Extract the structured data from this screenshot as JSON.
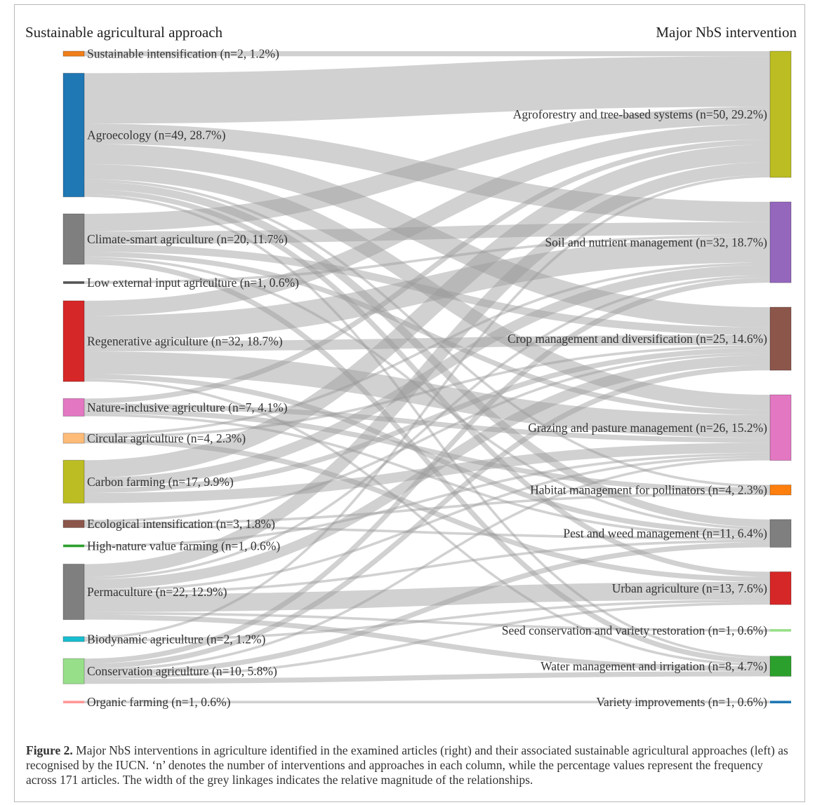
{
  "diagram": {
    "left_title": "Sustainable agricultural approach",
    "right_title": "Major NbS intervention",
    "left_nodes": [
      {
        "label": "Sustainable intensification (n=2, 1.2%)",
        "n": 2,
        "color": "#ef7f1a"
      },
      {
        "label": "Agroecology (n=49, 28.7%)",
        "n": 49,
        "color": "#1f77b4"
      },
      {
        "label": "Climate-smart agriculture (n=20, 11.7%)",
        "n": 20,
        "color": "#7f7f7f"
      },
      {
        "label": "Low external input agriculture (n=1, 0.6%)",
        "n": 1,
        "color": "#555555"
      },
      {
        "label": "Regenerative agriculture (n=32, 18.7%)",
        "n": 32,
        "color": "#d62728"
      },
      {
        "label": "Nature-inclusive agriculture (n=7, 4.1%)",
        "n": 7,
        "color": "#e377c2"
      },
      {
        "label": "Circular agriculture (n=4, 2.3%)",
        "n": 4,
        "color": "#ffbb78"
      },
      {
        "label": "Carbon farming (n=17, 9.9%)",
        "n": 17,
        "color": "#bcbd22"
      },
      {
        "label": "Ecological intensification (n=3, 1.8%)",
        "n": 3,
        "color": "#8c564b"
      },
      {
        "label": "High-nature value farming (n=1, 0.6%)",
        "n": 1,
        "color": "#2ca02c"
      },
      {
        "label": "Permaculture (n=22, 12.9%)",
        "n": 22,
        "color": "#7f7f7f"
      },
      {
        "label": "Biodynamic agriculture (n=2, 1.2%)",
        "n": 2,
        "color": "#17becf"
      },
      {
        "label": "Conservation agriculture (n=10, 5.8%)",
        "n": 10,
        "color": "#98df8a"
      },
      {
        "label": "Organic farming (n=1, 0.6%)",
        "n": 1,
        "color": "#ff9896"
      }
    ],
    "right_nodes": [
      {
        "label": "Agroforestry and tree-based systems (n=50, 29.2%)",
        "n": 50,
        "color": "#bcbd22"
      },
      {
        "label": "Soil and nutrient management (n=32, 18.7%)",
        "n": 32,
        "color": "#9467bd"
      },
      {
        "label": "Crop management and diversification (n=25, 14.6%)",
        "n": 25,
        "color": "#8c564b"
      },
      {
        "label": "Grazing and pasture management (n=26, 15.2%)",
        "n": 26,
        "color": "#e377c2"
      },
      {
        "label": "Habitat management for pollinators (n=4, 2.3%)",
        "n": 4,
        "color": "#ff7f0e"
      },
      {
        "label": "Pest and weed management (n=11, 6.4%)",
        "n": 11,
        "color": "#7f7f7f"
      },
      {
        "label": "Urban agriculture (n=13, 7.6%)",
        "n": 13,
        "color": "#d62728"
      },
      {
        "label": "Seed conservation and variety restoration (n=1, 0.6%)",
        "n": 1,
        "color": "#98df8a"
      },
      {
        "label": "Water management and irrigation (n=8, 4.7%)",
        "n": 8,
        "color": "#2ca02c"
      },
      {
        "label": "Variety improvements (n=1, 0.6%)",
        "n": 1,
        "color": "#1f77b4"
      }
    ],
    "links": [
      {
        "source": 0,
        "target": 0,
        "value": 2
      },
      {
        "source": 1,
        "target": 0,
        "value": 20
      },
      {
        "source": 1,
        "target": 1,
        "value": 8
      },
      {
        "source": 1,
        "target": 2,
        "value": 8
      },
      {
        "source": 1,
        "target": 3,
        "value": 6
      },
      {
        "source": 1,
        "target": 4,
        "value": 1
      },
      {
        "source": 1,
        "target": 5,
        "value": 3
      },
      {
        "source": 1,
        "target": 6,
        "value": 2
      },
      {
        "source": 1,
        "target": 8,
        "value": 1
      },
      {
        "source": 2,
        "target": 0,
        "value": 7
      },
      {
        "source": 2,
        "target": 1,
        "value": 5
      },
      {
        "source": 2,
        "target": 2,
        "value": 3
      },
      {
        "source": 2,
        "target": 3,
        "value": 2
      },
      {
        "source": 2,
        "target": 5,
        "value": 1
      },
      {
        "source": 2,
        "target": 8,
        "value": 2
      },
      {
        "source": 3,
        "target": 1,
        "value": 1
      },
      {
        "source": 4,
        "target": 0,
        "value": 6
      },
      {
        "source": 4,
        "target": 1,
        "value": 10
      },
      {
        "source": 4,
        "target": 2,
        "value": 4
      },
      {
        "source": 4,
        "target": 3,
        "value": 9
      },
      {
        "source": 4,
        "target": 5,
        "value": 2
      },
      {
        "source": 4,
        "target": 8,
        "value": 1
      },
      {
        "source": 5,
        "target": 0,
        "value": 2
      },
      {
        "source": 5,
        "target": 3,
        "value": 2
      },
      {
        "source": 5,
        "target": 4,
        "value": 2
      },
      {
        "source": 5,
        "target": 5,
        "value": 1
      },
      {
        "source": 6,
        "target": 1,
        "value": 1
      },
      {
        "source": 6,
        "target": 2,
        "value": 1
      },
      {
        "source": 6,
        "target": 6,
        "value": 2
      },
      {
        "source": 7,
        "target": 0,
        "value": 7
      },
      {
        "source": 7,
        "target": 1,
        "value": 4
      },
      {
        "source": 7,
        "target": 2,
        "value": 2
      },
      {
        "source": 7,
        "target": 3,
        "value": 4
      },
      {
        "source": 8,
        "target": 2,
        "value": 1
      },
      {
        "source": 8,
        "target": 4,
        "value": 1
      },
      {
        "source": 8,
        "target": 5,
        "value": 1
      },
      {
        "source": 9,
        "target": 3,
        "value": 1
      },
      {
        "source": 10,
        "target": 0,
        "value": 5
      },
      {
        "source": 10,
        "target": 1,
        "value": 1
      },
      {
        "source": 10,
        "target": 2,
        "value": 4
      },
      {
        "source": 10,
        "target": 3,
        "value": 1
      },
      {
        "source": 10,
        "target": 5,
        "value": 1
      },
      {
        "source": 10,
        "target": 6,
        "value": 7
      },
      {
        "source": 10,
        "target": 7,
        "value": 1
      },
      {
        "source": 10,
        "target": 8,
        "value": 2
      },
      {
        "source": 11,
        "target": 0,
        "value": 1
      },
      {
        "source": 11,
        "target": 6,
        "value": 1
      },
      {
        "source": 12,
        "target": 0,
        "value": 0
      },
      {
        "source": 12,
        "target": 1,
        "value": 2
      },
      {
        "source": 12,
        "target": 2,
        "value": 2
      },
      {
        "source": 12,
        "target": 3,
        "value": 1
      },
      {
        "source": 12,
        "target": 5,
        "value": 2
      },
      {
        "source": 12,
        "target": 6,
        "value": 1
      },
      {
        "source": 12,
        "target": 8,
        "value": 2
      },
      {
        "source": 13,
        "target": 9,
        "value": 1
      }
    ]
  },
  "caption": {
    "label": "Figure 2.",
    "text": " Major NbS interventions in agriculture identified in the examined articles (right) and their associated sustainable agricultural approaches (left) as recognised by the IUCN. ‘n’ denotes the number of interventions and approaches in each column, while the percentage values represent the frequency across 171 articles. The width of the grey linkages indicates the relative magnitude of the relationships."
  }
}
